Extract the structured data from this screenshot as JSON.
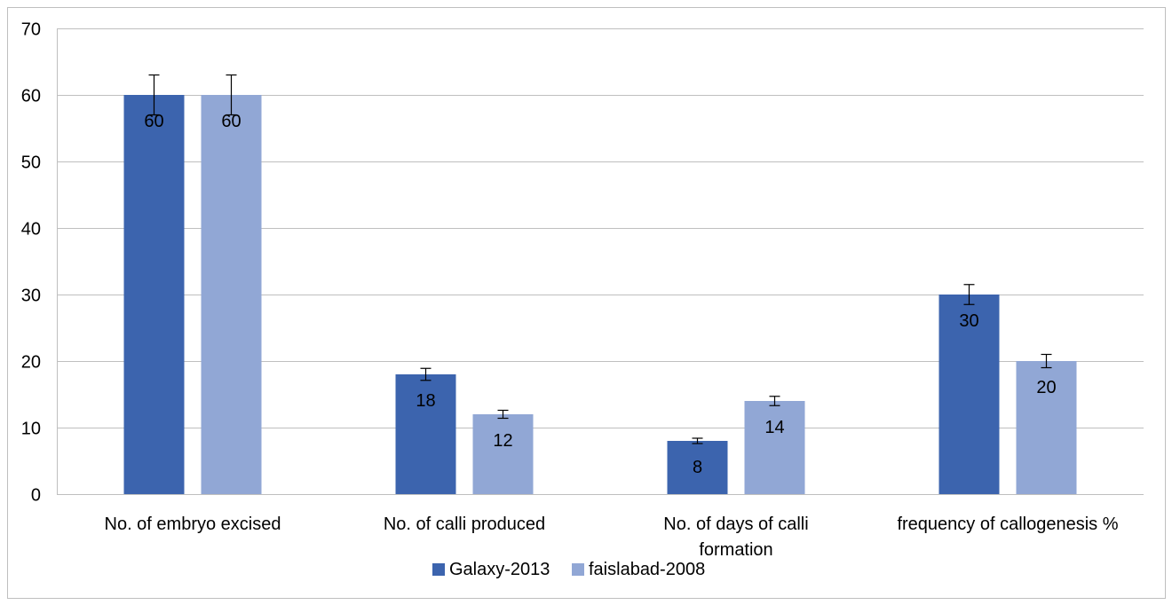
{
  "chart_data": {
    "type": "bar",
    "categories": [
      [
        "No. of embryo excised"
      ],
      [
        "No. of calli produced"
      ],
      [
        "No. of days of calli",
        "formation"
      ],
      [
        "frequency of callogenesis %"
      ]
    ],
    "series": [
      {
        "name": "Galaxy-2013",
        "values": [
          60,
          18,
          8,
          30
        ],
        "errors": [
          3,
          0.9,
          0.4,
          1.5
        ],
        "color": "#3c64ae"
      },
      {
        "name": "faislabad-2008",
        "values": [
          60,
          12,
          14,
          20
        ],
        "errors": [
          3,
          0.6,
          0.7,
          1.0
        ],
        "color": "#91a7d5"
      }
    ],
    "ylim": [
      0,
      70
    ],
    "yticks": [
      0,
      10,
      20,
      30,
      40,
      50,
      60,
      70
    ],
    "grid": true,
    "legend": "bottom"
  }
}
